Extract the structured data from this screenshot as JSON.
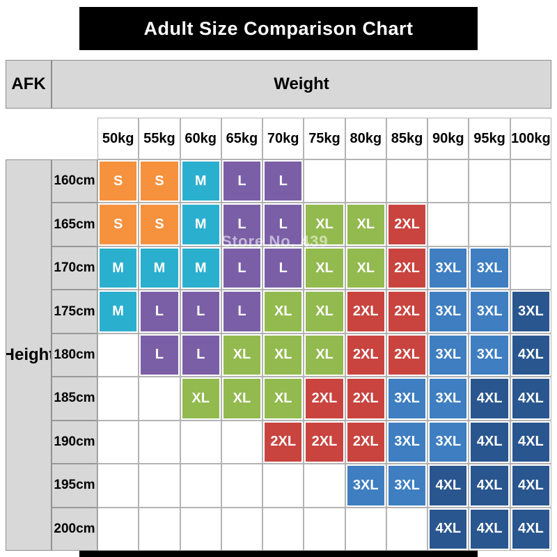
{
  "header": {
    "title": "Adult Size Comparison Chart"
  },
  "watermark": "Store No. 439",
  "chart_data": {
    "type": "table",
    "title": "Adult Size Comparison Chart",
    "corner": "AFK",
    "x_header": "Weight",
    "y_header": "Height",
    "columns": [
      "50kg",
      "55kg",
      "60kg",
      "65kg",
      "70kg",
      "75kg",
      "80kg",
      "85kg",
      "90kg",
      "95kg",
      "100kg"
    ],
    "rows": [
      "160cm",
      "165cm",
      "170cm",
      "175cm",
      "180cm",
      "185cm",
      "190cm",
      "195cm",
      "200cm"
    ],
    "size_matrix": [
      [
        "S",
        "S",
        "M",
        "L",
        "L",
        null,
        null,
        null,
        null,
        null,
        null
      ],
      [
        "S",
        "S",
        "M",
        "L",
        "L",
        "XL",
        "XL",
        "2XL",
        null,
        null,
        null
      ],
      [
        "M",
        "M",
        "M",
        "L",
        "L",
        "XL",
        "XL",
        "2XL",
        "3XL",
        "3XL",
        null
      ],
      [
        "M",
        "L",
        "L",
        "L",
        "XL",
        "XL",
        "2XL",
        "2XL",
        "3XL",
        "3XL",
        "3XL"
      ],
      [
        null,
        "L",
        "L",
        "XL",
        "XL",
        "XL",
        "2XL",
        "2XL",
        "3XL",
        "3XL",
        "4XL"
      ],
      [
        null,
        null,
        "XL",
        "XL",
        "XL",
        "2XL",
        "2XL",
        "3XL",
        "3XL",
        "4XL",
        "4XL"
      ],
      [
        null,
        null,
        null,
        null,
        "2XL",
        "2XL",
        "2XL",
        "3XL",
        "3XL",
        "4XL",
        "4XL"
      ],
      [
        null,
        null,
        null,
        null,
        null,
        null,
        "3XL",
        "3XL",
        "4XL",
        "4XL",
        "4XL"
      ],
      [
        null,
        null,
        null,
        null,
        null,
        null,
        null,
        null,
        "4XL",
        "4XL",
        "4XL"
      ]
    ],
    "color_matrix": [
      [
        "orange",
        "orange",
        "cyan",
        "purple",
        "purple",
        null,
        null,
        null,
        null,
        null,
        null
      ],
      [
        "orange",
        "orange",
        "cyan",
        "purple",
        "purple",
        "green",
        "green",
        "red",
        null,
        null,
        null
      ],
      [
        "cyan",
        "cyan",
        "cyan",
        "purple",
        "purple",
        "green",
        "green",
        "red",
        "blue",
        "blue",
        null
      ],
      [
        "cyan",
        "purple",
        "purple",
        "purple",
        "green",
        "green",
        "red",
        "red",
        "blue",
        "blue",
        "navy"
      ],
      [
        null,
        "purple",
        "purple",
        "green",
        "green",
        "green",
        "red",
        "red",
        "blue",
        "blue",
        "navy"
      ],
      [
        null,
        null,
        "green",
        "green",
        "green",
        "red",
        "red",
        "blue",
        "blue",
        "navy",
        "navy"
      ],
      [
        null,
        null,
        null,
        null,
        "red",
        "red",
        "red",
        "blue",
        "blue",
        "navy",
        "navy"
      ],
      [
        null,
        null,
        null,
        null,
        null,
        null,
        "blue",
        "blue",
        "navy",
        "navy",
        "navy"
      ],
      [
        null,
        null,
        null,
        null,
        null,
        null,
        null,
        null,
        "navy",
        "navy",
        "navy"
      ]
    ],
    "palette": {
      "orange": "#F6913E",
      "cyan": "#2BAFCE",
      "purple": "#7A5FA6",
      "green": "#92BA4E",
      "red": "#C9443F",
      "blue": "#3E7EC1",
      "navy": "#29568F"
    }
  }
}
